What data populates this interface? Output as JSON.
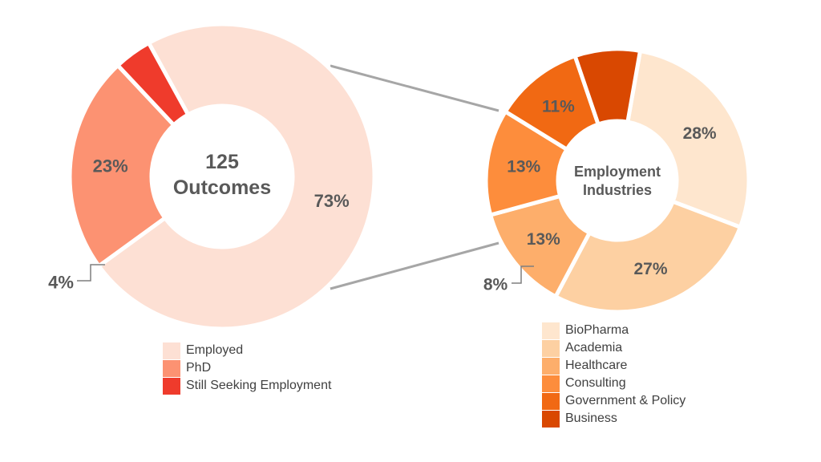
{
  "chart_data": [
    {
      "type": "pie",
      "title": "",
      "center_label": [
        "125",
        "Outcomes"
      ],
      "slices": [
        {
          "name": "Employed",
          "value": 73,
          "label": "73%",
          "color": "#FDE0D4"
        },
        {
          "name": "PhD",
          "value": 23,
          "label": "23%",
          "color": "#FC9272"
        },
        {
          "name": "Still Seeking Employment",
          "value": 4,
          "label": "4%",
          "color": "#EF3B2C"
        }
      ],
      "legend_position": "bottom"
    },
    {
      "type": "pie",
      "title": "",
      "center_label": [
        "Employment",
        "Industries"
      ],
      "slices": [
        {
          "name": "BioPharma",
          "value": 28,
          "label": "28%",
          "color": "#FEE6CE"
        },
        {
          "name": "Academia",
          "value": 27,
          "label": "27%",
          "color": "#FDD0A2"
        },
        {
          "name": "Healthcare",
          "value": 13,
          "label": "13%",
          "color": "#FDAE6B"
        },
        {
          "name": "Consulting",
          "value": 13,
          "label": "13%",
          "color": "#FD8D3C"
        },
        {
          "name": "Government & Policy",
          "value": 11,
          "label": "11%",
          "color": "#F16913"
        },
        {
          "name": "Business",
          "value": 8,
          "label": "8%",
          "color": "#D94801"
        }
      ],
      "legend_position": "bottom"
    }
  ]
}
